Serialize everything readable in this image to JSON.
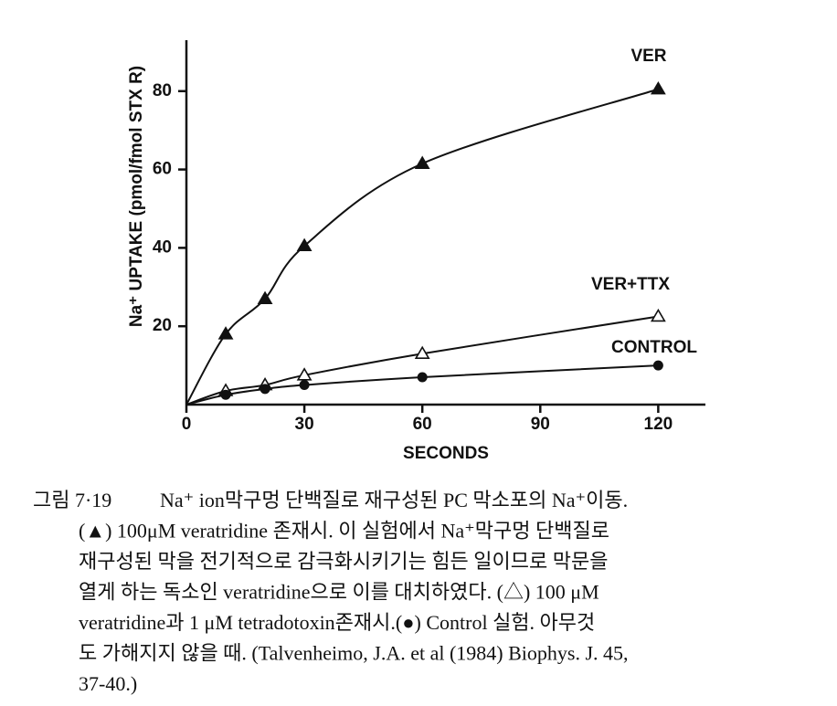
{
  "chart_data": {
    "type": "scatter",
    "y_label": "Na⁺ UPTAKE (pmol/fmol STX R)",
    "x_label": "SECONDS",
    "x": [
      10,
      20,
      30,
      60,
      120
    ],
    "series": [
      {
        "name": "VER",
        "color": "#111111",
        "marker": "triangle",
        "values": [
          18,
          27,
          40.5,
          61.5,
          80.5
        ]
      },
      {
        "name": "VER+TTX",
        "color": "#111111",
        "marker": "triangle-open",
        "values": [
          3.5,
          5,
          7.5,
          13,
          22.5
        ]
      },
      {
        "name": "CONTROL",
        "color": "#111111",
        "marker": "circle",
        "values": [
          2.5,
          4,
          5,
          7,
          10
        ]
      }
    ],
    "xlim": [
      0,
      132
    ],
    "xticks": [
      0,
      30,
      60,
      90,
      120
    ],
    "ylim": [
      0,
      93
    ],
    "yticks": [
      20,
      40,
      60,
      80
    ],
    "grid": false
  },
  "caption": {
    "label": "그림 7·19",
    "lines": [
      "Na⁺ ion막구멍 단백질로 재구성된 PC 막소포의 Na⁺이동.",
      "(▲) 100μM veratridine 존재시. 이 실험에서 Na⁺막구멍 단백질로",
      "재구성된 막을 전기적으로  감극화시키기는 힘든 일이므로 막문을",
      "열게 하는 독소인 veratridine으로 이를 대치하였다. (△) 100 μM",
      "veratridine과 1 μM tetradotoxin존재시.(●) Control 실험. 아무것",
      "도  가해지지 않을 때. (Talvenheimo, J.A. et al (1984) Biophys. J. 45,",
      "37-40.)"
    ]
  }
}
